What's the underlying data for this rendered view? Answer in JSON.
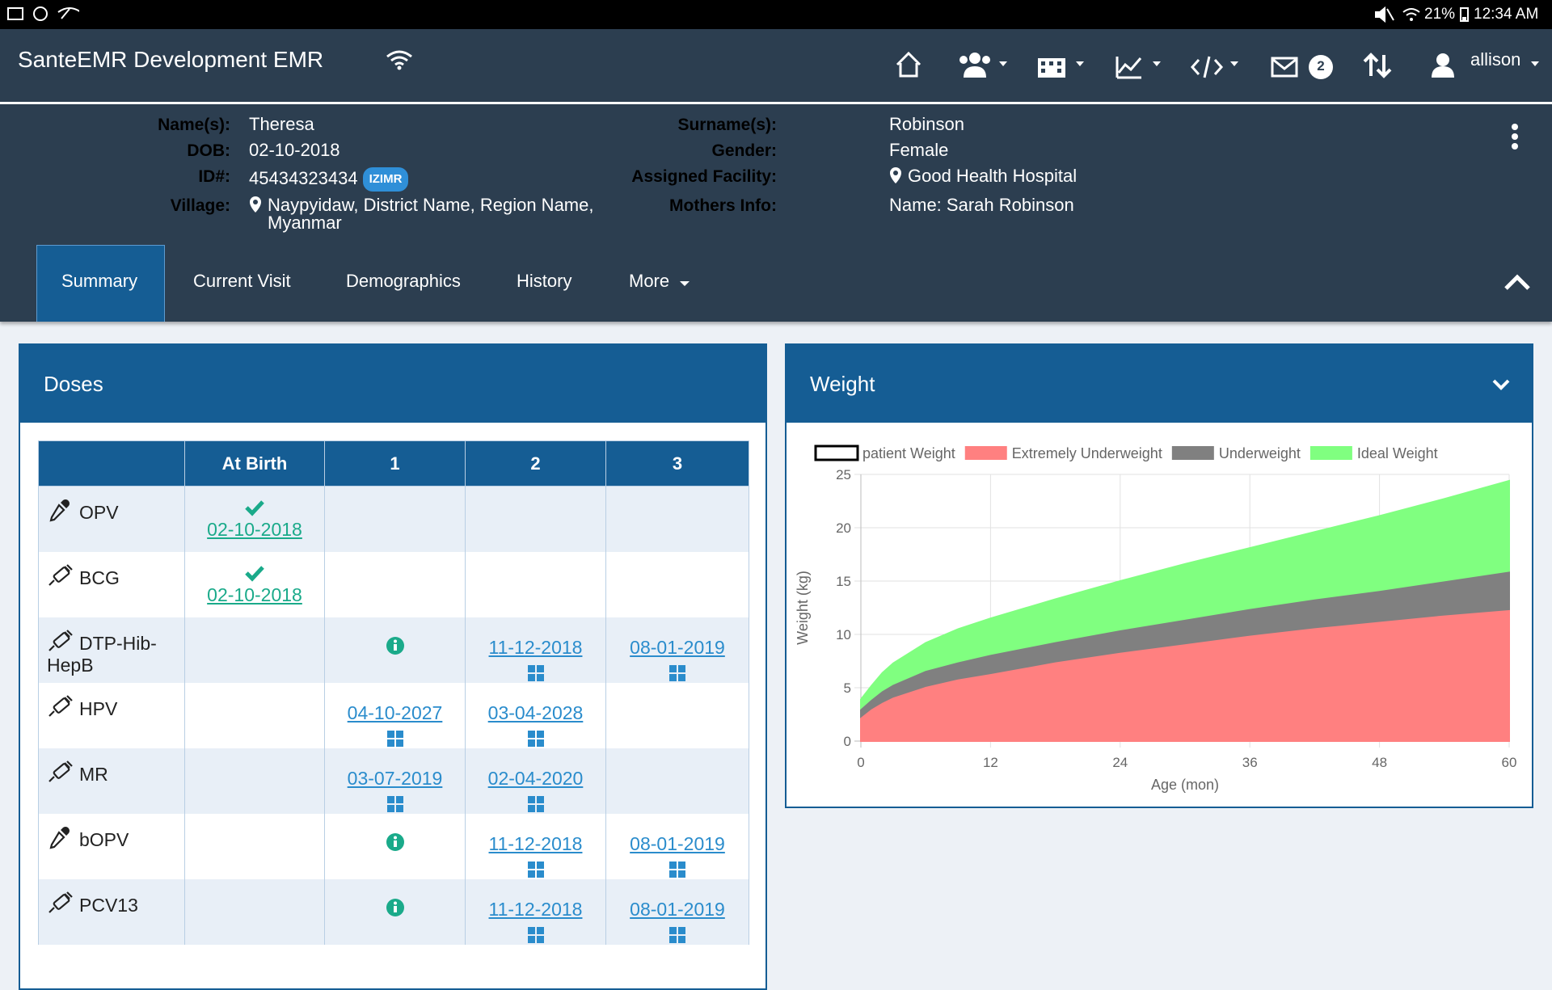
{
  "status_bar": {
    "battery": "21%",
    "time": "12:34 AM"
  },
  "navbar": {
    "brand": "SanteEMR Development EMR",
    "mail_count": "2",
    "user": "allison"
  },
  "patient": {
    "left": [
      {
        "label": "Name(s):",
        "value": "Theresa"
      },
      {
        "label": "DOB:",
        "value": "02-10-2018"
      },
      {
        "label": "ID#:",
        "value": "45434323434",
        "badge": "IZIMR"
      },
      {
        "label": "Village:",
        "value": "Naypyidaw, District Name, Region Name, Myanmar",
        "icon": "pin"
      }
    ],
    "right": [
      {
        "label": "Surname(s):",
        "value": "Robinson"
      },
      {
        "label": "Gender:",
        "value": "Female"
      },
      {
        "label": "Assigned Facility:",
        "value": "Good Health Hospital",
        "icon": "pin"
      },
      {
        "label": "Mothers Info:",
        "value": "Name: Sarah Robinson"
      }
    ]
  },
  "tabs": {
    "items": [
      "Summary",
      "Current Visit",
      "Demographics",
      "History",
      "More"
    ],
    "active": 0,
    "dropdown": 4
  },
  "doses": {
    "title": "Doses",
    "columns": [
      "At Birth",
      "1",
      "2",
      "3"
    ],
    "rows": [
      {
        "vaccine": "OPV",
        "icon": "dropper",
        "cells": [
          {
            "date": "02-10-2018",
            "state": "given"
          },
          null,
          null,
          null
        ]
      },
      {
        "vaccine": "BCG",
        "icon": "syringe",
        "cells": [
          {
            "date": "02-10-2018",
            "state": "given"
          },
          null,
          null,
          null
        ]
      },
      {
        "vaccine": "DTP-Hib-HepB",
        "icon": "syringe",
        "cells": [
          null,
          {
            "state": "info"
          },
          {
            "date": "11-12-2018",
            "state": "scheduled"
          },
          {
            "date": "08-01-2019",
            "state": "scheduled"
          }
        ]
      },
      {
        "vaccine": "HPV",
        "icon": "syringe",
        "cells": [
          null,
          {
            "date": "04-10-2027",
            "state": "scheduled"
          },
          {
            "date": "03-04-2028",
            "state": "scheduled"
          },
          null
        ]
      },
      {
        "vaccine": "MR",
        "icon": "syringe",
        "cells": [
          null,
          {
            "date": "03-07-2019",
            "state": "scheduled"
          },
          {
            "date": "02-04-2020",
            "state": "scheduled"
          },
          null
        ]
      },
      {
        "vaccine": "bOPV",
        "icon": "dropper",
        "cells": [
          null,
          {
            "state": "info"
          },
          {
            "date": "11-12-2018",
            "state": "scheduled"
          },
          {
            "date": "08-01-2019",
            "state": "scheduled"
          }
        ]
      },
      {
        "vaccine": "PCV13",
        "icon": "syringe",
        "cells": [
          null,
          {
            "state": "info"
          },
          {
            "date": "11-12-2018",
            "state": "scheduled"
          },
          {
            "date": "08-01-2019",
            "state": "scheduled"
          }
        ]
      }
    ]
  },
  "chart_data": {
    "type": "area",
    "title": "Weight",
    "x_label": "Age (mon)",
    "y_label": "Weight (kg)",
    "x": [
      0,
      1,
      2,
      3,
      6,
      9,
      12,
      18,
      24,
      30,
      36,
      42,
      48,
      54,
      60
    ],
    "series": [
      {
        "name": "patient Weight",
        "color": "#000000",
        "fill": false,
        "values": [
          null,
          null,
          null,
          null,
          null,
          null,
          null,
          null,
          null,
          null,
          null,
          null,
          null,
          null,
          null
        ]
      },
      {
        "name": "Extremely Underweight",
        "color": "#ff8080",
        "fill": true,
        "values": [
          2.1,
          2.9,
          3.5,
          4.0,
          5.0,
          5.7,
          6.2,
          7.3,
          8.2,
          9.0,
          9.8,
          10.5,
          11.1,
          11.7,
          12.2
        ]
      },
      {
        "name": "Underweight",
        "color": "#808080",
        "fill": true,
        "values": [
          2.9,
          3.8,
          4.6,
          5.2,
          6.5,
          7.3,
          8.0,
          9.2,
          10.3,
          11.3,
          12.3,
          13.2,
          14.0,
          14.9,
          15.8
        ]
      },
      {
        "name": "Ideal Weight",
        "color": "#80ff80",
        "fill": true,
        "values": [
          3.9,
          5.2,
          6.4,
          7.3,
          9.2,
          10.5,
          11.5,
          13.3,
          15.0,
          16.6,
          18.1,
          19.6,
          21.1,
          22.7,
          24.4
        ]
      }
    ],
    "xlim": [
      0,
      60
    ],
    "xticks": [
      0,
      12,
      24,
      36,
      48,
      60
    ],
    "ylim": [
      0,
      25
    ],
    "yticks": [
      0,
      5,
      10,
      15,
      20,
      25
    ],
    "grid": true,
    "legend": "top"
  }
}
